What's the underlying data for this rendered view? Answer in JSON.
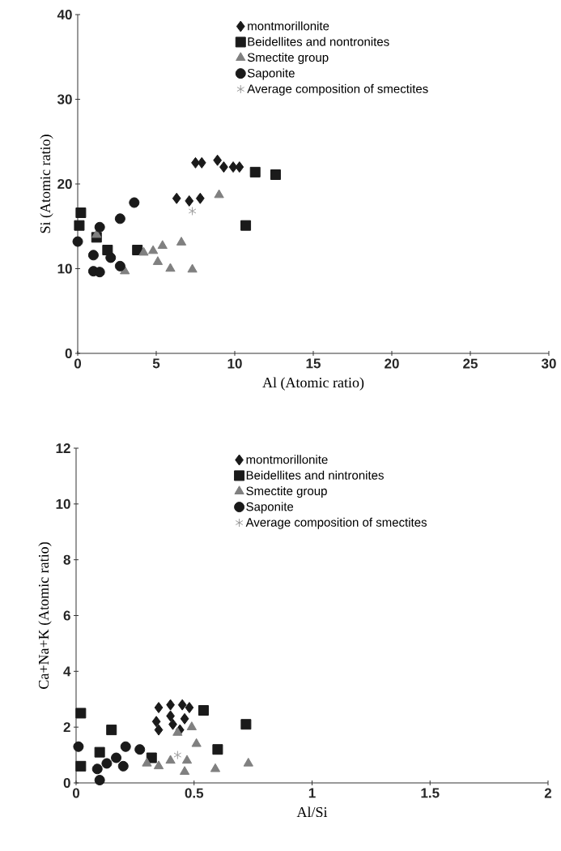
{
  "chart_data": [
    {
      "type": "scatter",
      "xlabel": "Al (Atomic ratio)",
      "ylabel": "Si (Atomic ratio)",
      "xlim": [
        0,
        30
      ],
      "ylim": [
        0,
        40
      ],
      "xticks": [
        0,
        5,
        10,
        15,
        20,
        25,
        30
      ],
      "yticks": [
        0,
        10,
        20,
        30,
        40
      ],
      "legend": "top",
      "grid": false,
      "series": [
        {
          "name": "montmorillonite",
          "color": "#1a1a1a",
          "marker": "diamond",
          "x": [
            7.5,
            7.9,
            8.9,
            9.2,
            9.3,
            9.9,
            10.3,
            6.3,
            7.1,
            7.8
          ],
          "values": [
            22.5,
            22.5,
            22.8,
            null,
            22.0,
            22.0,
            22.0,
            18.3,
            18.0,
            18.3
          ]
        },
        {
          "name": "Beidellites and nontronites",
          "color": "#1a1a1a",
          "marker": "square",
          "x": [
            11.3,
            12.6,
            10.7,
            0.2,
            0.1,
            1.2,
            1.9,
            3.8
          ],
          "values": [
            21.4,
            21.1,
            15.1,
            16.6,
            15.1,
            13.7,
            12.2,
            12.2
          ]
        },
        {
          "name": "Smectite group",
          "color": "#808080",
          "marker": "triangle",
          "x": [
            9.0,
            6.6,
            5.4,
            4.8,
            4.2,
            5.1,
            5.9,
            7.3,
            3.0,
            1.6,
            1.2
          ],
          "values": [
            18.7,
            13.1,
            12.7,
            12.1,
            11.9,
            10.8,
            10.0,
            9.9,
            9.7,
            null,
            14.0
          ]
        },
        {
          "name": "Saponite",
          "color": "#1a1a1a",
          "marker": "circle",
          "x": [
            3.6,
            2.7,
            1.4,
            0.0,
            1.0,
            2.1,
            2.7,
            1.0,
            1.4
          ],
          "values": [
            17.8,
            15.9,
            14.9,
            13.2,
            11.6,
            11.3,
            10.3,
            9.7,
            9.6
          ]
        },
        {
          "name": "Average composition of smectites",
          "color": "#999999",
          "marker": "cross",
          "x": [
            7.3
          ],
          "values": [
            16.8
          ]
        }
      ]
    },
    {
      "type": "scatter",
      "xlabel": "Al/Si",
      "ylabel": "Ca+Na+K (Atomic ratio)",
      "xlim": [
        0,
        2
      ],
      "ylim": [
        0,
        12
      ],
      "xticks": [
        0,
        0.5,
        1,
        1.5,
        2
      ],
      "yticks": [
        0,
        2,
        4,
        6,
        8,
        10,
        12
      ],
      "legend": "top",
      "grid": false,
      "series": [
        {
          "name": "montmorillonite",
          "color": "#1a1a1a",
          "marker": "diamond",
          "x": [
            0.35,
            0.4,
            0.45,
            0.48,
            0.34,
            0.35,
            0.4,
            0.46,
            0.41,
            0.44
          ],
          "values": [
            2.7,
            2.8,
            2.8,
            2.7,
            2.2,
            1.9,
            2.4,
            2.3,
            2.1,
            1.9
          ]
        },
        {
          "name": "Beidellites and nintronites",
          "color": "#1a1a1a",
          "marker": "square",
          "x": [
            0.02,
            0.02,
            0.15,
            0.1,
            0.32,
            0.54,
            0.6,
            0.72
          ],
          "values": [
            2.5,
            0.6,
            1.9,
            1.1,
            0.9,
            2.6,
            1.2,
            2.1
          ]
        },
        {
          "name": "Smectite group",
          "color": "#808080",
          "marker": "triangle",
          "x": [
            0.43,
            0.49,
            0.51,
            0.4,
            0.3,
            0.35,
            0.47,
            0.46,
            0.59,
            0.73
          ],
          "values": [
            1.8,
            2.0,
            1.4,
            0.8,
            0.7,
            0.6,
            0.8,
            0.4,
            0.5,
            0.7
          ]
        },
        {
          "name": "Saponite",
          "color": "#1a1a1a",
          "marker": "circle",
          "x": [
            0.01,
            0.09,
            0.1,
            0.13,
            0.17,
            0.2,
            0.21,
            0.27
          ],
          "values": [
            1.3,
            0.5,
            0.1,
            0.7,
            0.9,
            0.6,
            1.3,
            1.2
          ]
        },
        {
          "name": "Average composition of smectites",
          "color": "#999999",
          "marker": "cross",
          "x": [
            0.43
          ],
          "values": [
            1.0
          ]
        }
      ]
    }
  ]
}
